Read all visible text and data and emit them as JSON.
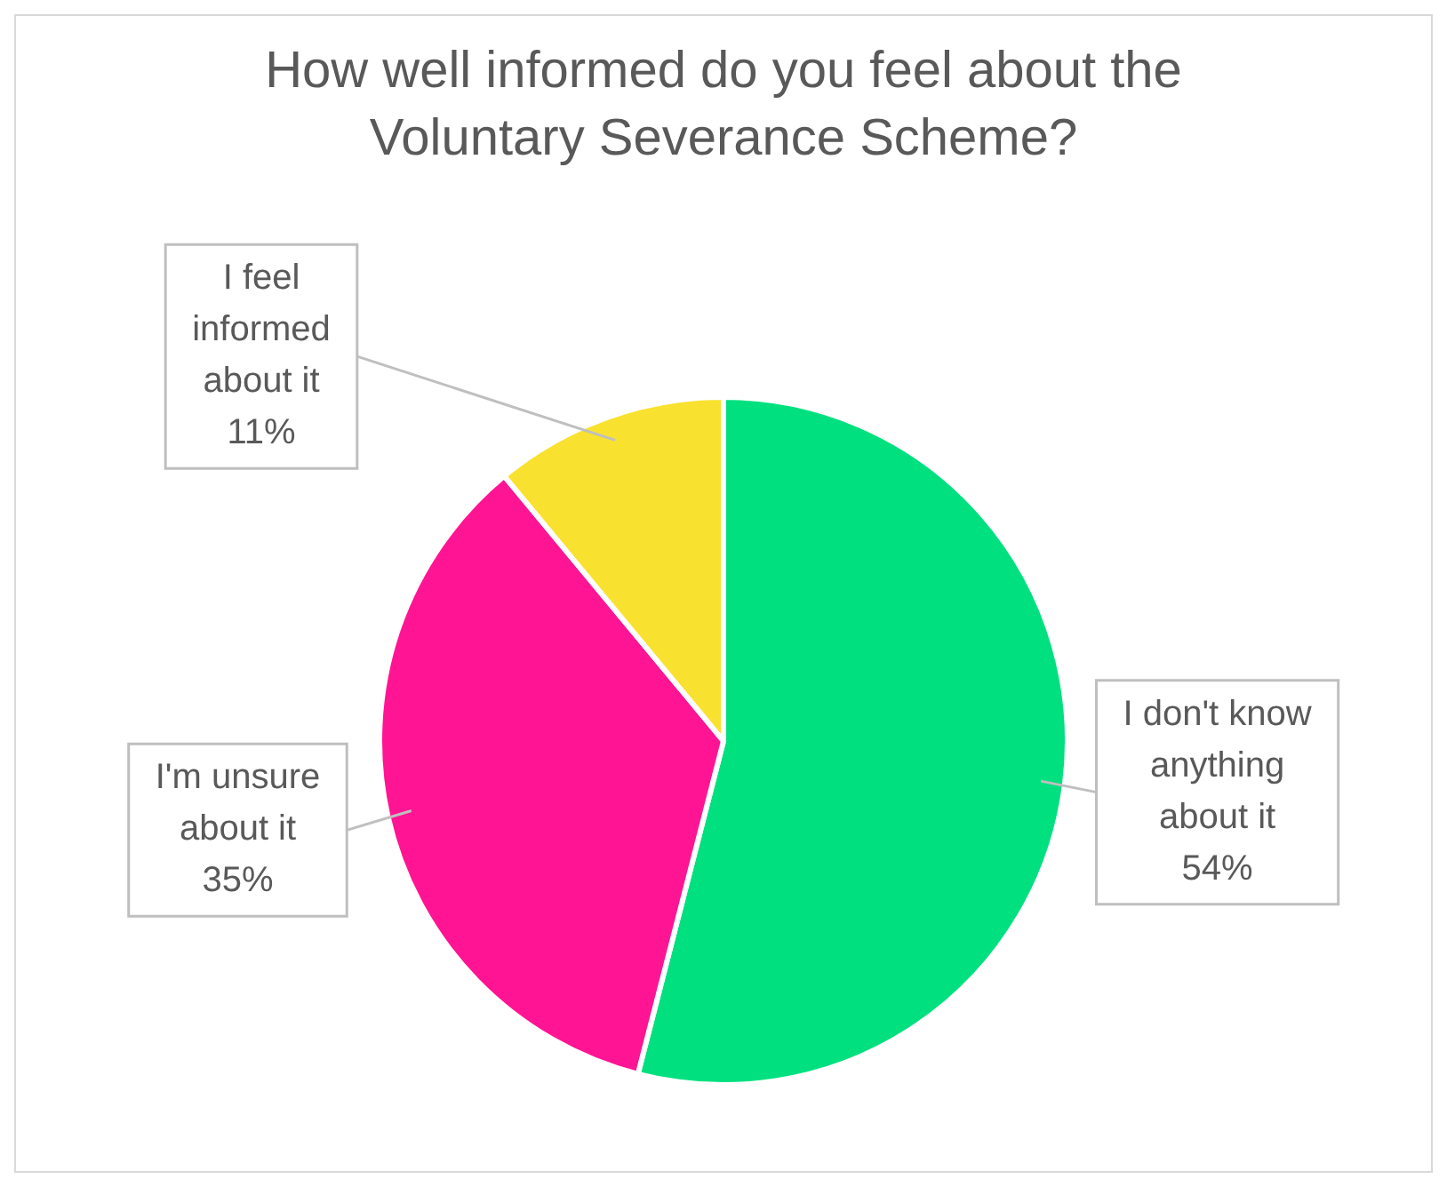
{
  "chart_data": {
    "type": "pie",
    "title": "How well informed do you feel about the Voluntary Severance Scheme?",
    "categories": [
      "I don't know anything about it",
      "I'm unsure about it",
      "I feel informed about it"
    ],
    "values": [
      54,
      35,
      11
    ],
    "colors": [
      "#00e07f",
      "#ff1493",
      "#f9e12f"
    ],
    "value_labels": [
      "54%",
      "35%",
      "11%"
    ],
    "legend": false
  }
}
